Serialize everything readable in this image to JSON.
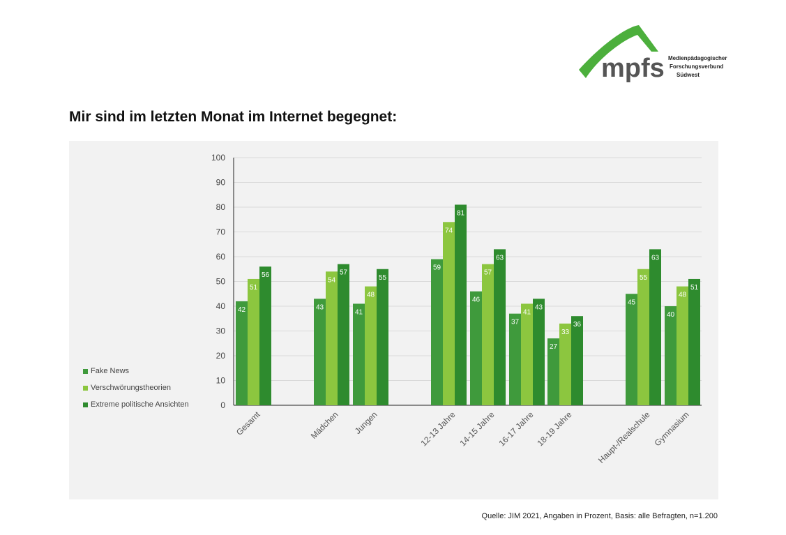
{
  "logo": {
    "name": "mpfs",
    "line1": "Medienpädagogischer",
    "line2": "Forschungsverbund",
    "line3": "Südwest"
  },
  "title": "Mir sind im letzten Monat im Internet begegnet:",
  "source": "Quelle: JIM 2021, Angaben in Prozent, Basis: alle Befragten, n=1.200",
  "colors": {
    "fake": "#3f9a3c",
    "versch": "#8cc63f",
    "extreme": "#2e8b2e",
    "panel": "#f2f2f2"
  },
  "chart_data": {
    "type": "bar",
    "ylim": [
      0,
      100
    ],
    "yticks": [
      0,
      10,
      20,
      30,
      40,
      50,
      60,
      70,
      80,
      90,
      100
    ],
    "grid": true,
    "legend_position": "left",
    "categories": [
      "Gesamt",
      "Mädchen",
      "Jungen",
      "12-13 Jahre",
      "14-15 Jahre",
      "16-17 Jahre",
      "18-19 Jahre",
      "Haupt-/Realschule",
      "Gymnasium"
    ],
    "series": [
      {
        "name": "Fake News",
        "color": "#3f9a3c",
        "values": [
          42,
          43,
          41,
          59,
          46,
          37,
          27,
          45,
          40
        ]
      },
      {
        "name": "Verschwörungstheorien",
        "color": "#8cc63f",
        "values": [
          51,
          54,
          48,
          74,
          57,
          41,
          33,
          55,
          48
        ]
      },
      {
        "name": "Extreme politische Ansichten",
        "color": "#2e8b2e",
        "values": [
          56,
          57,
          55,
          81,
          63,
          43,
          36,
          63,
          51
        ]
      }
    ]
  }
}
